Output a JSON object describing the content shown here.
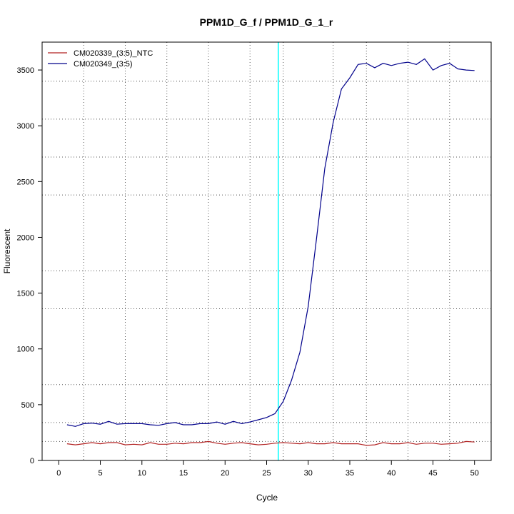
{
  "chart_data": {
    "type": "line",
    "title": "PPM1D_G_f / PPM1D_G_1_r",
    "xlabel": "Cycle",
    "ylabel": "Fluorescent",
    "xlim": [
      -2,
      52
    ],
    "ylim": [
      0,
      3750
    ],
    "x_ticks": [
      0,
      5,
      10,
      15,
      20,
      25,
      30,
      35,
      40,
      45,
      50
    ],
    "y_ticks": [
      0,
      500,
      1000,
      1500,
      2000,
      2500,
      3000,
      3500
    ],
    "x_grid": [
      3,
      8,
      13,
      18,
      23,
      27,
      33,
      37,
      42,
      47
    ],
    "y_grid": [
      0,
      170,
      340,
      680,
      1360,
      1700,
      2380,
      2720,
      3060,
      3400
    ],
    "threshold_x": 26.4,
    "legend_position": "top-left",
    "x": [
      1,
      2,
      3,
      4,
      5,
      6,
      7,
      8,
      9,
      10,
      11,
      12,
      13,
      14,
      15,
      16,
      17,
      18,
      19,
      20,
      21,
      22,
      23,
      24,
      25,
      26,
      27,
      28,
      29,
      30,
      31,
      32,
      33,
      34,
      35,
      36,
      37,
      38,
      39,
      40,
      41,
      42,
      43,
      44,
      45,
      46,
      47,
      48,
      49,
      50
    ],
    "series": [
      {
        "name": "CM020339_(3:5)_NTC",
        "color": "#b22222",
        "values": [
          150,
          140,
          150,
          160,
          150,
          160,
          160,
          140,
          145,
          140,
          160,
          145,
          145,
          155,
          150,
          160,
          160,
          170,
          155,
          145,
          155,
          160,
          150,
          140,
          145,
          155,
          160,
          155,
          150,
          160,
          150,
          150,
          160,
          150,
          150,
          150,
          135,
          140,
          160,
          150,
          150,
          160,
          145,
          155,
          155,
          145,
          150,
          155,
          170,
          165
        ]
      },
      {
        "name": "CM020349_(3:5)",
        "color": "#00008b",
        "values": [
          320,
          305,
          330,
          335,
          325,
          350,
          325,
          330,
          330,
          330,
          320,
          315,
          330,
          340,
          320,
          320,
          330,
          330,
          345,
          325,
          350,
          330,
          345,
          365,
          385,
          420,
          530,
          720,
          970,
          1380,
          1990,
          2620,
          3030,
          3330,
          3430,
          3550,
          3560,
          3520,
          3560,
          3540,
          3560,
          3570,
          3550,
          3600,
          3500,
          3540,
          3560,
          3510,
          3500,
          3495
        ]
      }
    ]
  }
}
